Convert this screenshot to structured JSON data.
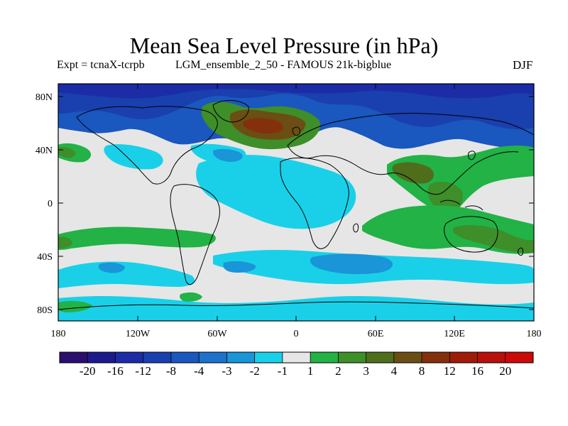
{
  "title": "Mean Sea Level Pressure (in hPa)",
  "subtitle_left": "Expt = tcnaX-tcrpb",
  "subtitle_center": "LGM_ensemble_2_50 - FAMOUS 21k-bigblue",
  "season": "DJF",
  "y_ticks": [
    "80N",
    "40N",
    "0",
    "40S",
    "80S"
  ],
  "x_ticks": [
    "180",
    "120W",
    "60W",
    "0",
    "60E",
    "120E",
    "180"
  ],
  "colorbar": {
    "colors": [
      "#2b0e6e",
      "#1c1a8c",
      "#1b2ca6",
      "#1a3fae",
      "#1a57bf",
      "#1d72cc",
      "#1995d8",
      "#1ad0e8",
      "#e6e6e6",
      "#22b246",
      "#3e8e2a",
      "#4e6e1c",
      "#6a4e14",
      "#84300c",
      "#9f1c0a",
      "#b8100a",
      "#cc0a08"
    ],
    "labels": [
      "-20",
      "-16",
      "-12",
      "-8",
      "-4",
      "-3",
      "-2",
      "-1",
      "1",
      "2",
      "3",
      "4",
      "8",
      "12",
      "16",
      "20"
    ]
  },
  "legend_icons": [
    "coastline-icon"
  ]
}
